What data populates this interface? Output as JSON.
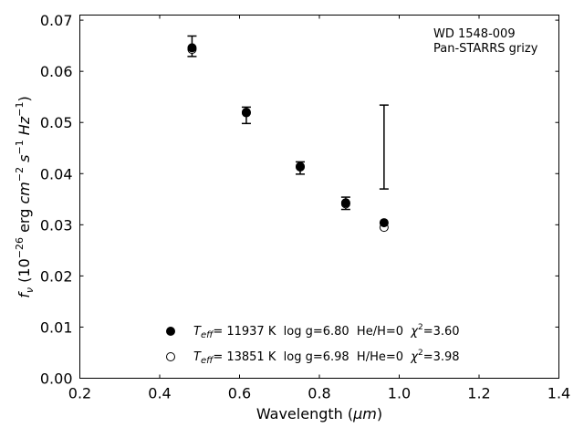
{
  "chart_data": {
    "type": "scatter",
    "annotation": [
      "WD 1548-009",
      "Pan-STARRS grizy"
    ],
    "xlabel": {
      "main": "Wavelength (",
      "unit": "μm",
      "close": ")"
    },
    "ylabel": {
      "prefix": "f",
      "sub": "ν",
      "mid": " (10",
      "exp1": "−26",
      "mid2": " erg ",
      "cm": "cm",
      "exp2": "−2",
      "s": " s",
      "exp3": "−1",
      "hz": " Hz",
      "exp4": "−1",
      "close": ")"
    },
    "xlim": [
      0.2,
      1.4
    ],
    "ylim": [
      0.0,
      0.071
    ],
    "xticks": [
      0.2,
      0.4,
      0.6,
      0.8,
      1.0,
      1.2,
      1.4
    ],
    "xtick_labels": [
      "0.2",
      "0.4",
      "0.6",
      "0.8",
      "1.0",
      "1.2",
      "1.4"
    ],
    "yticks": [
      0.0,
      0.01,
      0.02,
      0.03,
      0.04,
      0.05,
      0.06,
      0.07
    ],
    "ytick_labels": [
      "0.00",
      "0.01",
      "0.02",
      "0.03",
      "0.04",
      "0.05",
      "0.06",
      "0.07"
    ],
    "observed": {
      "x": [
        0.481,
        0.617,
        0.752,
        0.866,
        0.962
      ],
      "y": [
        0.0649,
        0.0514,
        0.0411,
        0.0342,
        0.0452
      ],
      "yerr": [
        0.002,
        0.0016,
        0.0012,
        0.0012,
        0.0082
      ]
    },
    "series": [
      {
        "marker": "filled",
        "legend": {
          "teff": "T",
          "teff_sub": "eff",
          "text": "= 11937 K  log g=6.80  He/H=0  ",
          "chi": "χ",
          "chi_exp": "2",
          "chi_val": "=3.60"
        },
        "x": [
          0.481,
          0.617,
          0.752,
          0.866,
          0.962
        ],
        "y": [
          0.0646,
          0.052,
          0.0414,
          0.0343,
          0.0304
        ]
      },
      {
        "marker": "open",
        "legend": {
          "teff": "T",
          "teff_sub": "eff",
          "text": "= 13851 K  log g=6.98  H/He=0  ",
          "chi": "χ",
          "chi_exp": "2",
          "chi_val": "=3.98"
        },
        "x": [
          0.481,
          0.617,
          0.752,
          0.866,
          0.962
        ],
        "y": [
          0.0643,
          0.0519,
          0.0413,
          0.0341,
          0.0295
        ]
      }
    ],
    "grid": false,
    "legend_position": "lower-center"
  }
}
